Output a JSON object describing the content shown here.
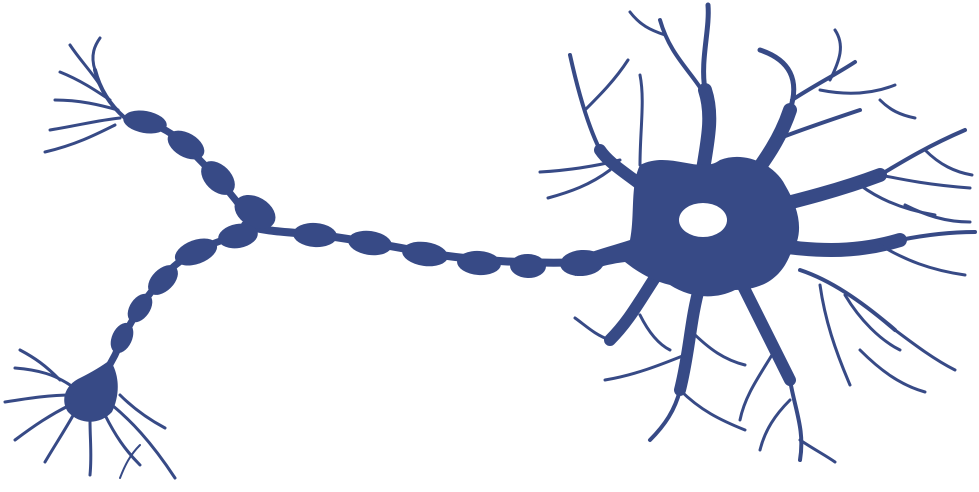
{
  "illustration": {
    "subject": "neuron-silhouette",
    "colors": {
      "neuron": "#374a86",
      "background": "#ffffff",
      "nucleus": "#ffffff"
    },
    "parts": [
      "soma",
      "nucleus",
      "dendrites",
      "axon",
      "myelin-sheath-segments",
      "axon-branch-upper",
      "axon-branch-lower",
      "axon-terminal-upper",
      "axon-terminal-lower"
    ]
  }
}
